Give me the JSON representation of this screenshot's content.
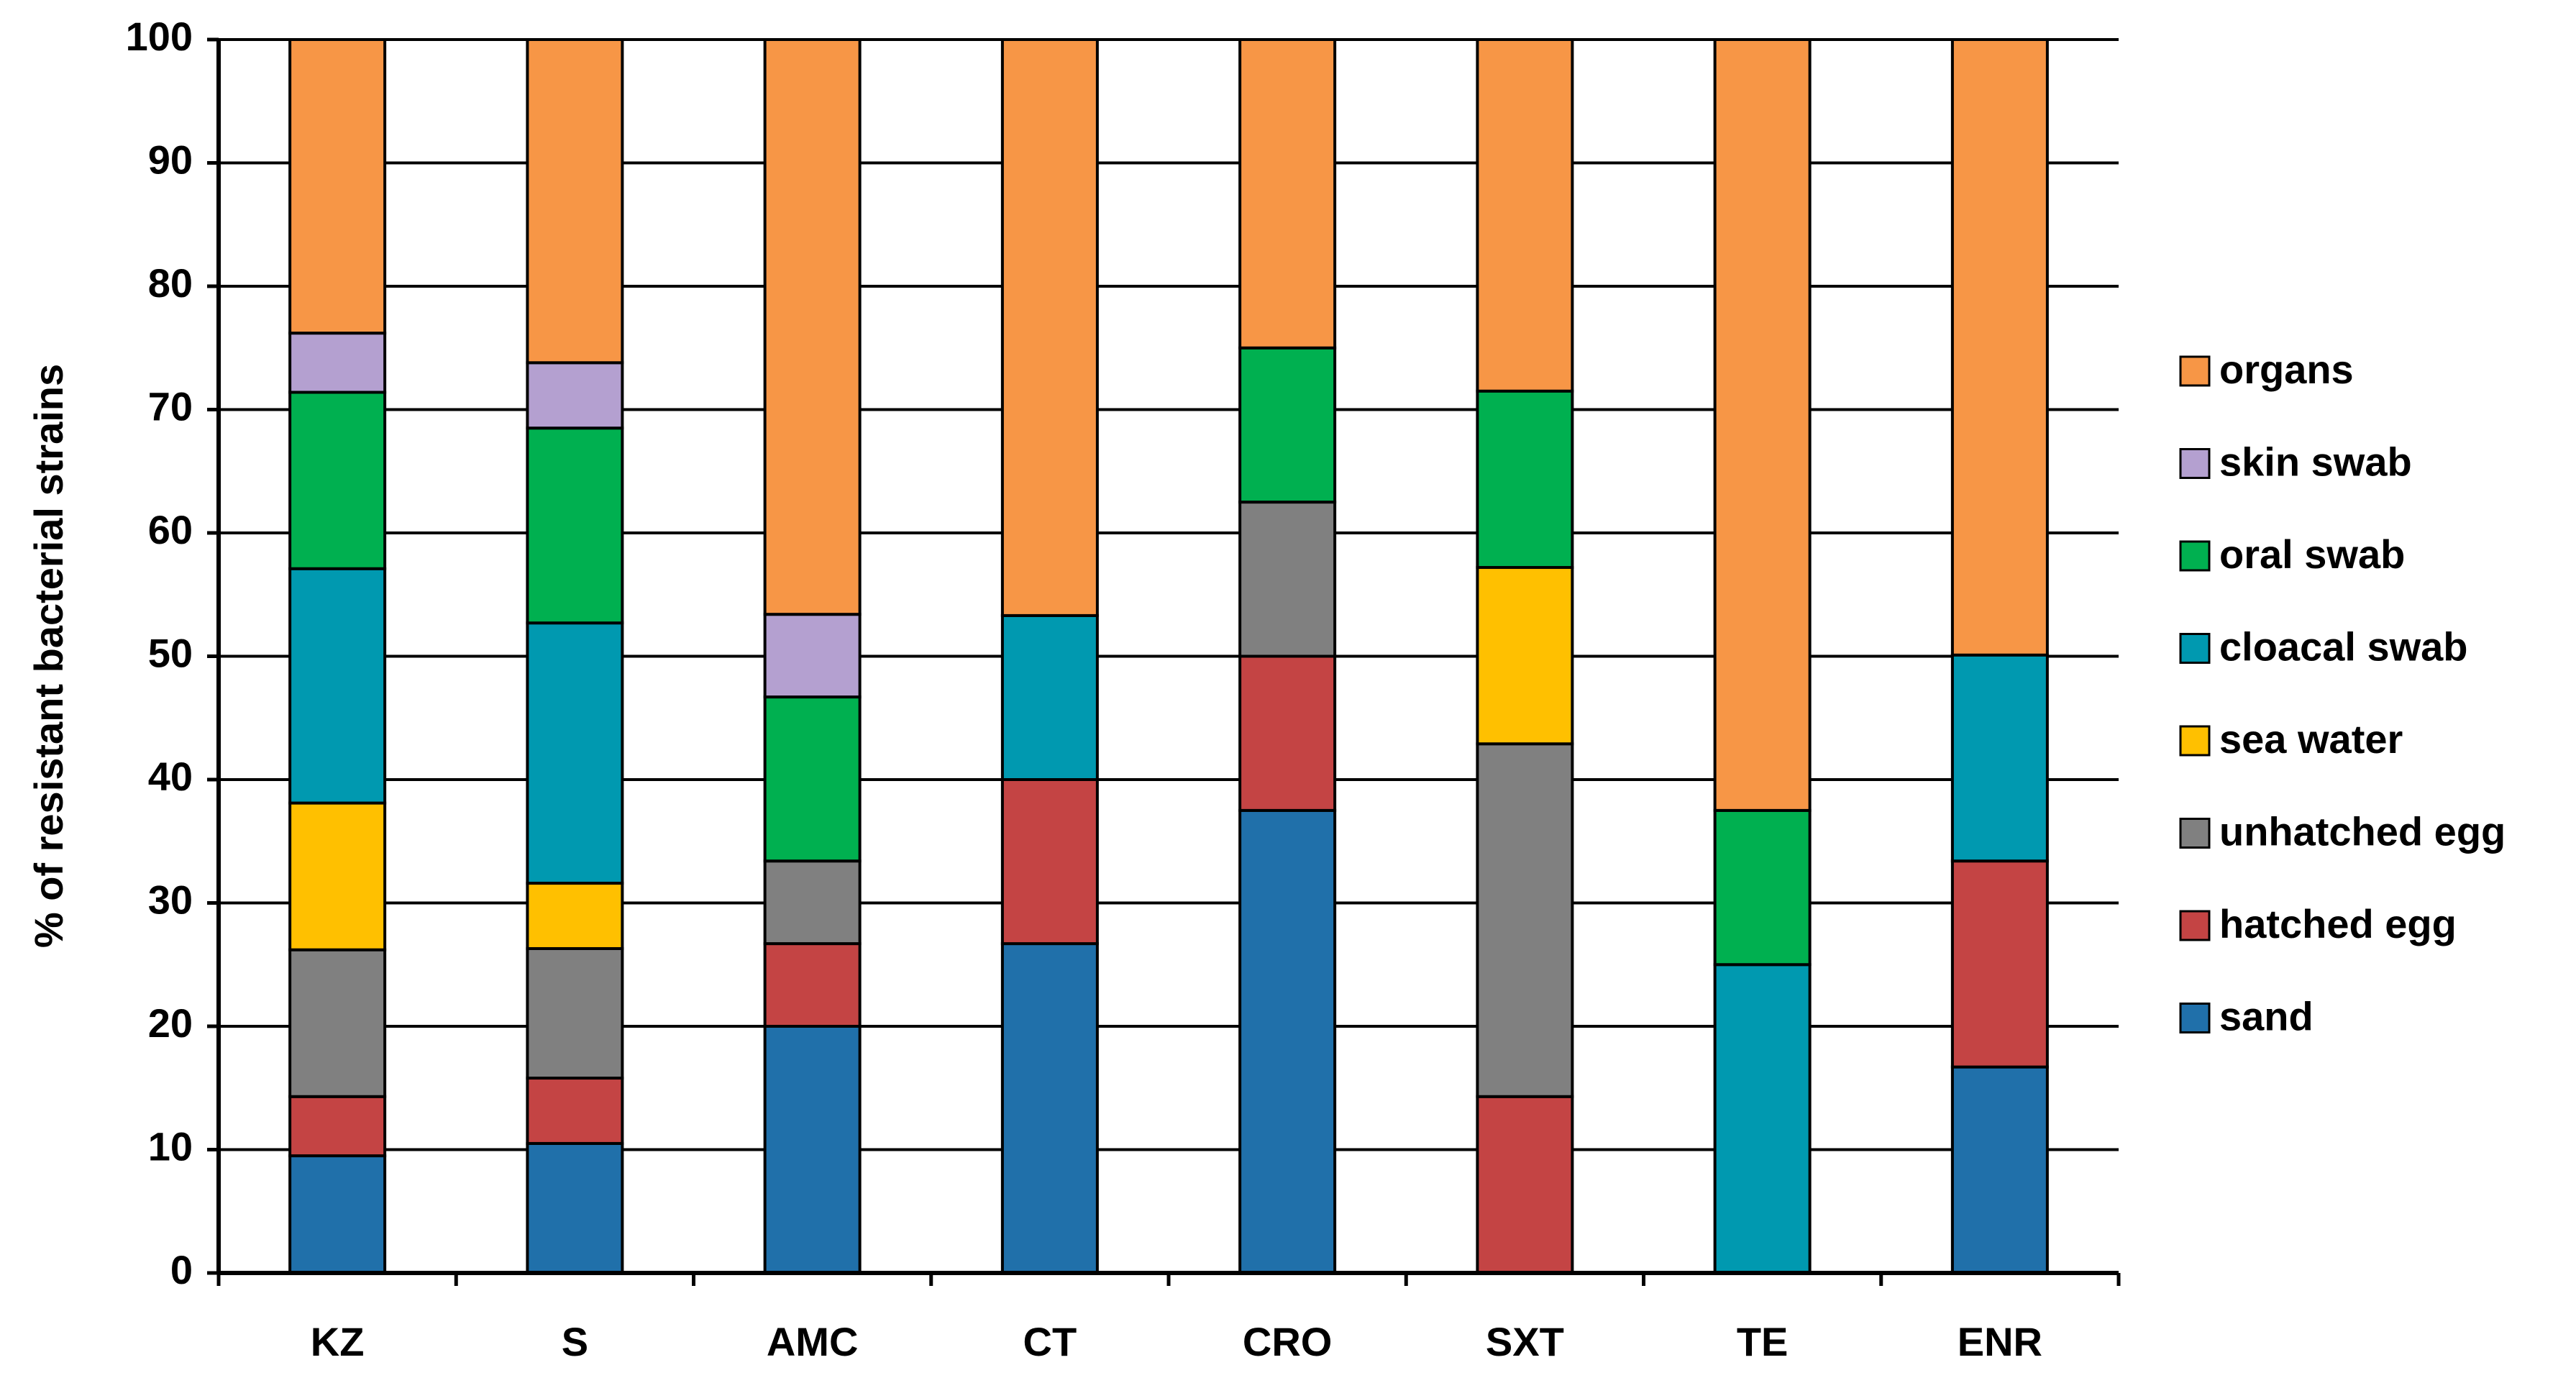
{
  "chart_data": {
    "type": "stacked-bar",
    "y_label": "% of resistant bacterial strains",
    "categories": [
      "KZ",
      "S",
      "AMC",
      "CT",
      "CRO",
      "SXT",
      "TE",
      "ENR"
    ],
    "series": [
      {
        "name": "sand",
        "color": "#2070aa",
        "values": [
          9.5,
          10.5,
          20,
          26.7,
          37.5,
          0,
          0,
          16.7
        ]
      },
      {
        "name": "hatched egg",
        "color": "#c44444",
        "values": [
          4.8,
          5.3,
          6.7,
          13.3,
          12.5,
          14.3,
          0,
          16.7
        ]
      },
      {
        "name": "unhatched egg",
        "color": "#808080",
        "values": [
          11.9,
          10.5,
          6.7,
          0,
          12.5,
          28.6,
          0,
          0
        ]
      },
      {
        "name": "sea water",
        "color": "#ffc000",
        "values": [
          11.9,
          5.3,
          0,
          0,
          0,
          14.3,
          0,
          0
        ]
      },
      {
        "name": "cloacal swab",
        "color": "#0099b0",
        "values": [
          19.0,
          21.1,
          0,
          13.3,
          0,
          0,
          25,
          16.7
        ]
      },
      {
        "name": "oral swab",
        "color": "#00b050",
        "values": [
          14.3,
          15.8,
          13.3,
          0,
          12.5,
          14.3,
          12.5,
          0
        ]
      },
      {
        "name": "skin swab",
        "color": "#b4a0d0",
        "values": [
          4.8,
          5.3,
          6.7,
          0,
          0,
          0,
          0,
          0
        ]
      },
      {
        "name": "organs",
        "color": "#f79646",
        "values": [
          23.8,
          26.2,
          46.6,
          46.7,
          25,
          28.5,
          62.5,
          49.9
        ]
      }
    ],
    "ylim": [
      0,
      100
    ],
    "yticks": [
      0,
      10,
      20,
      30,
      40,
      50,
      60,
      70,
      80,
      90,
      100
    ],
    "grid": true,
    "legend": "right"
  }
}
